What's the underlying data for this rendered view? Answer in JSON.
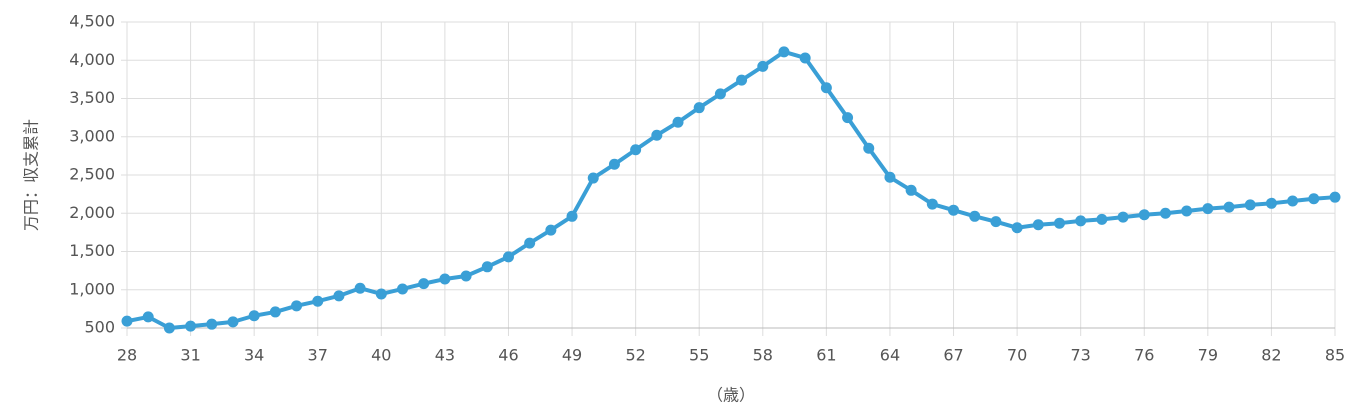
{
  "chart_data": {
    "type": "line",
    "x_label": "（歳）",
    "y_label": "万円：収支累計",
    "x": [
      28,
      29,
      30,
      31,
      32,
      33,
      34,
      35,
      36,
      37,
      38,
      39,
      40,
      41,
      42,
      43,
      44,
      45,
      46,
      47,
      48,
      49,
      50,
      51,
      52,
      53,
      54,
      55,
      56,
      57,
      58,
      59,
      60,
      61,
      62,
      63,
      64,
      65,
      66,
      67,
      68,
      69,
      70,
      71,
      72,
      73,
      74,
      75,
      76,
      77,
      78,
      79,
      80,
      81,
      82,
      83,
      84,
      85
    ],
    "values": [
      590,
      645,
      500,
      525,
      550,
      580,
      660,
      710,
      790,
      850,
      920,
      1020,
      945,
      1010,
      1080,
      1140,
      1180,
      1300,
      1430,
      1610,
      1780,
      1960,
      2460,
      2640,
      2830,
      3020,
      3190,
      3380,
      3560,
      3740,
      3920,
      4110,
      4030,
      3640,
      3250,
      2850,
      2470,
      2300,
      2120,
      2040,
      1960,
      1890,
      1810,
      1850,
      1870,
      1900,
      1920,
      1950,
      1980,
      2000,
      2030,
      2060,
      2080,
      2110,
      2130,
      2160,
      2190,
      2210
    ],
    "color": "#3a9fd6",
    "xlim": [
      28,
      85
    ],
    "xticks": [
      28,
      31,
      34,
      37,
      40,
      43,
      46,
      49,
      52,
      55,
      58,
      61,
      64,
      67,
      70,
      73,
      76,
      79,
      82,
      85
    ],
    "ylim": [
      500,
      4500
    ],
    "yticks": [
      {
        "value": 500,
        "label": "500"
      },
      {
        "value": 1000,
        "label": "1,000"
      },
      {
        "value": 1500,
        "label": "1,500"
      },
      {
        "value": 2000,
        "label": "2,000"
      },
      {
        "value": 2500,
        "label": "2,500"
      },
      {
        "value": 3000,
        "label": "3,000"
      },
      {
        "value": 3500,
        "label": "3,500"
      },
      {
        "value": 4000,
        "label": "4,000"
      },
      {
        "value": 4500,
        "label": "4,500"
      }
    ],
    "grid": true
  }
}
